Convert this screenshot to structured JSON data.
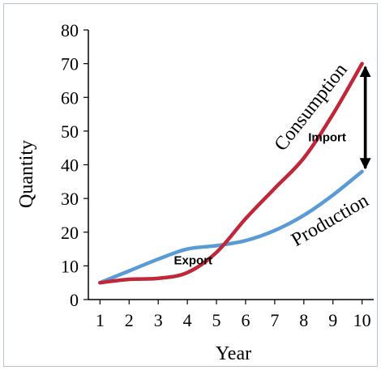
{
  "chart_data": {
    "type": "line",
    "title": "",
    "xlabel": "Year",
    "ylabel": "Quantity",
    "x": [
      1,
      2,
      3,
      4,
      5,
      6,
      7,
      8,
      9,
      10
    ],
    "xlim": [
      0.6,
      10.4
    ],
    "ylim": [
      0,
      80
    ],
    "yticks": [
      0,
      10,
      20,
      30,
      40,
      50,
      60,
      70,
      80
    ],
    "xticks": [
      1,
      2,
      3,
      4,
      5,
      6,
      7,
      8,
      9,
      10
    ],
    "grid": false,
    "series": [
      {
        "name": "Production",
        "color": "#5b9bd5",
        "values": [
          5,
          8.5,
          12,
          15,
          16,
          17.5,
          20.5,
          25,
          31,
          38
        ]
      },
      {
        "name": "Consumption",
        "color": "#c0283a",
        "values": [
          5,
          6,
          6.3,
          8,
          14,
          24,
          33,
          42,
          55,
          70
        ]
      }
    ],
    "annotations": [
      {
        "text": "Export",
        "x": 4.2,
        "y": 10.5
      },
      {
        "text": "Import",
        "x": 8.8,
        "y": 47
      },
      {
        "text": "Consumption",
        "x": 8.4,
        "y": 56,
        "rotate": -52
      },
      {
        "text": "Production",
        "x": 9,
        "y": 22,
        "rotate": -30
      }
    ],
    "gap_arrow": {
      "x": 10,
      "from": 70,
      "to": 38,
      "color": "#000000"
    }
  }
}
